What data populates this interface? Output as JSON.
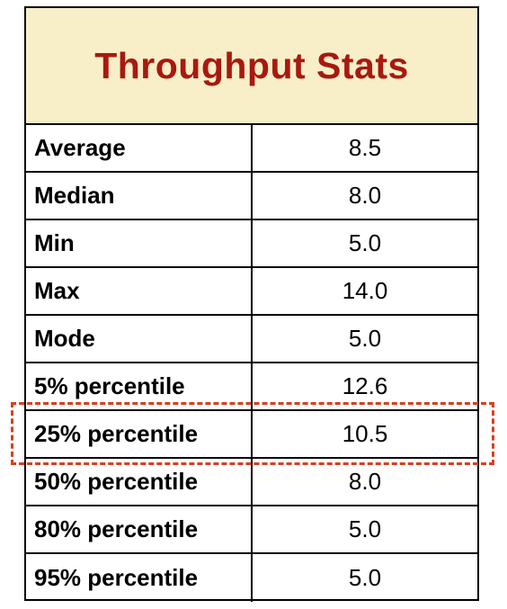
{
  "table": {
    "title": "Throughput Stats",
    "rows": [
      [
        "Average",
        "8.5"
      ],
      [
        "Median",
        "8.0"
      ],
      [
        "Min",
        "5.0"
      ],
      [
        "Max",
        "14.0"
      ],
      [
        "Mode",
        "5.0"
      ],
      [
        "5% percentile",
        "12.6"
      ],
      [
        "25% percentile",
        "10.5"
      ],
      [
        "50% percentile",
        "8.0"
      ],
      [
        "80% percentile",
        "5.0"
      ],
      [
        "95% percentile",
        "5.0"
      ]
    ]
  }
}
